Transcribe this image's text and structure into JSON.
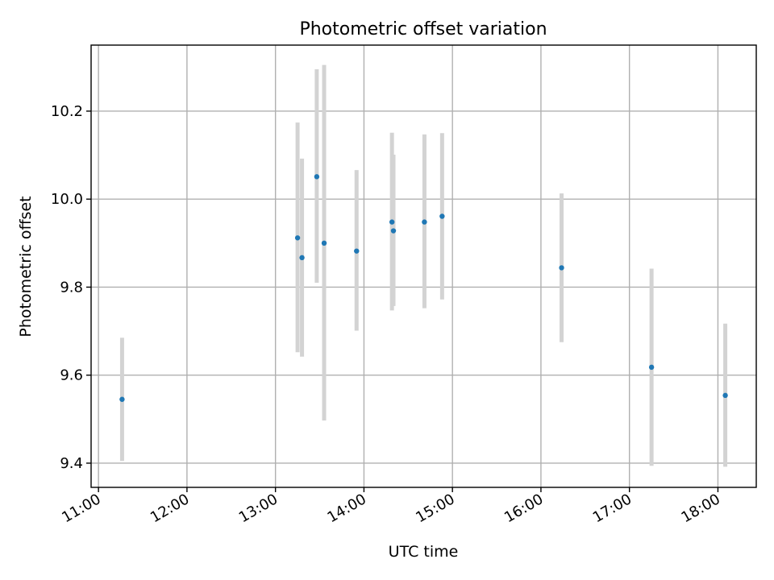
{
  "chart_data": {
    "type": "scatter",
    "title": "Photometric offset variation",
    "xlabel": "UTC time",
    "ylabel": "Photometric offset",
    "xlim": [
      "10:55",
      "18:26"
    ],
    "ylim": [
      9.345,
      10.35
    ],
    "grid": true,
    "x_ticks": [
      "11:00",
      "12:00",
      "13:00",
      "14:00",
      "15:00",
      "16:00",
      "17:00",
      "18:00"
    ],
    "y_ticks": [
      "9.4",
      "9.6",
      "9.8",
      "10.0",
      "10.2"
    ],
    "colors": {
      "points": "#1f77b4",
      "errorbars": "#d3d3d3",
      "grid": "#b0b0b0"
    },
    "points": [
      {
        "x": "11:16",
        "y": 9.545,
        "ylow": 9.405,
        "yhigh": 9.685
      },
      {
        "x": "13:15",
        "y": 9.912,
        "ylow": 9.652,
        "yhigh": 10.174
      },
      {
        "x": "13:18",
        "y": 9.867,
        "ylow": 9.642,
        "yhigh": 10.092
      },
      {
        "x": "13:28",
        "y": 10.051,
        "ylow": 9.81,
        "yhigh": 10.295
      },
      {
        "x": "13:33",
        "y": 9.9,
        "ylow": 9.497,
        "yhigh": 10.305
      },
      {
        "x": "13:55",
        "y": 9.882,
        "ylow": 9.701,
        "yhigh": 10.066
      },
      {
        "x": "14:19",
        "y": 9.948,
        "ylow": 9.747,
        "yhigh": 10.151
      },
      {
        "x": "14:20",
        "y": 9.928,
        "ylow": 9.757,
        "yhigh": 10.101
      },
      {
        "x": "14:41",
        "y": 9.948,
        "ylow": 9.752,
        "yhigh": 10.147
      },
      {
        "x": "14:53",
        "y": 9.961,
        "ylow": 9.772,
        "yhigh": 10.15
      },
      {
        "x": "16:14",
        "y": 9.844,
        "ylow": 9.675,
        "yhigh": 10.013
      },
      {
        "x": "17:15",
        "y": 9.618,
        "ylow": 9.394,
        "yhigh": 9.842
      },
      {
        "x": "18:05",
        "y": 9.554,
        "ylow": 9.392,
        "yhigh": 9.717
      }
    ]
  }
}
